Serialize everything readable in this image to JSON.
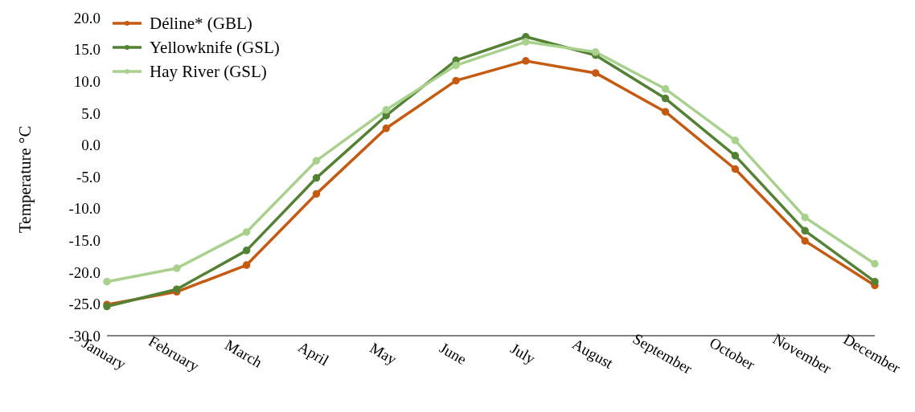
{
  "chart_data": {
    "type": "line",
    "ylabel": "Temperature °C",
    "categories": [
      "January",
      "February",
      "March",
      "April",
      "May",
      "June",
      "July",
      "August",
      "September",
      "October",
      "November",
      "December"
    ],
    "series": [
      {
        "name": "Déline* (GBL)",
        "color": "#c55a11",
        "values": [
          -25.1,
          -23.1,
          -18.9,
          -7.7,
          2.6,
          10.1,
          13.2,
          11.3,
          5.2,
          -3.8,
          -15.1,
          -22.1
        ]
      },
      {
        "name": "Yellowknife (GSL)",
        "color": "#548235",
        "values": [
          -25.4,
          -22.7,
          -16.6,
          -5.2,
          4.6,
          13.3,
          17.0,
          14.1,
          7.3,
          -1.7,
          -13.5,
          -21.5
        ]
      },
      {
        "name": "Hay River (GSL)",
        "color": "#a9d18e",
        "values": [
          -21.5,
          -19.4,
          -13.7,
          -2.5,
          5.5,
          12.5,
          16.2,
          14.6,
          8.8,
          0.7,
          -11.4,
          -18.7
        ]
      }
    ],
    "ylim": [
      -30,
      20
    ],
    "yticks": [
      {
        "value": -30,
        "label": "-30.0"
      },
      {
        "value": -25,
        "label": "-25.0"
      },
      {
        "value": -20,
        "label": "-20.0"
      },
      {
        "value": -15,
        "label": "-15.0"
      },
      {
        "value": -10,
        "label": "-10.0"
      },
      {
        "value": -5,
        "label": "-5.0"
      },
      {
        "value": 0,
        "label": "0.0"
      },
      {
        "value": 5,
        "label": "5.0"
      },
      {
        "value": 10,
        "label": "10.0"
      },
      {
        "value": 15,
        "label": "15.0"
      },
      {
        "value": 20,
        "label": "20.0"
      }
    ],
    "grid": false,
    "legend": "top left",
    "marker": "circle",
    "line_style": "solid"
  }
}
